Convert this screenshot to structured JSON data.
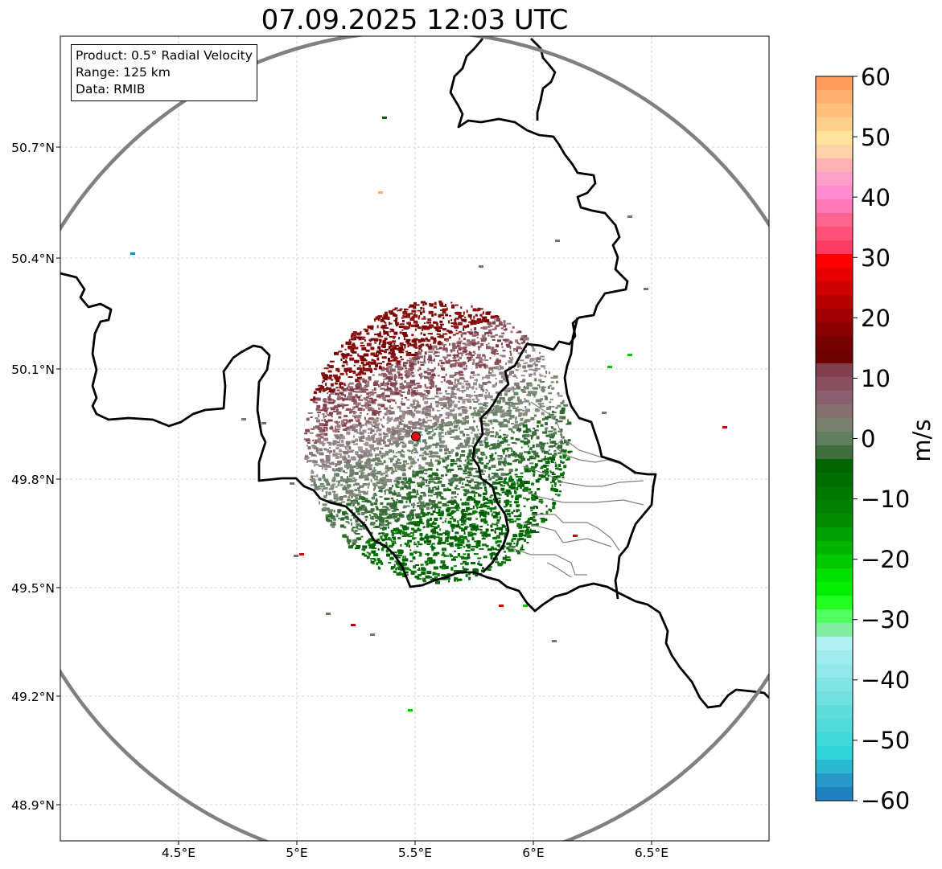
{
  "title": "07.09.2025 12:03 UTC",
  "info_box": {
    "product": "Product: 0.5° Radial Velocity",
    "range": "Range: 125 km",
    "data": "Data: RMIB"
  },
  "map": {
    "radar_site": {
      "lon": 5.505,
      "lat": 49.914
    },
    "lon_range": [
      4.0,
      7.0
    ],
    "lat_range": [
      48.8,
      50.99
    ],
    "lat_ticks": [
      "50.7°N",
      "50.4°N",
      "50.1°N",
      "49.8°N",
      "49.5°N",
      "49.2°N",
      "48.9°N"
    ],
    "lon_ticks": [
      "4.5°E",
      "5°E",
      "5.5°E",
      "6°E",
      "6.5°E"
    ],
    "grid": true,
    "range_ring_color": "#808080",
    "border_color": "#000000"
  },
  "colorbar": {
    "unit": "m/s",
    "ticks": [
      "60",
      "50",
      "40",
      "30",
      "20",
      "10",
      "0",
      "−10",
      "−20",
      "−30",
      "−40",
      "−50",
      "−60"
    ],
    "range": [
      -60,
      60
    ],
    "colors_top_to_bottom": [
      "#ff9a5a",
      "#ffb070",
      "#ffc07c",
      "#ffcf8a",
      "#ffe39c",
      "#ffd2a8",
      "#ffb2b4",
      "#ff9ec8",
      "#ff8cd0",
      "#ff78b8",
      "#ff6490",
      "#ff5078",
      "#ff3c64",
      "#ff0000",
      "#e80000",
      "#d00000",
      "#b80000",
      "#a00000",
      "#8c0000",
      "#780000",
      "#6e0000",
      "#804050",
      "#8a5060",
      "#8a6070",
      "#887070",
      "#7a8070",
      "#5f7f5f",
      "#3f6f3f",
      "#006400",
      "#006e00",
      "#007800",
      "#008200",
      "#008c00",
      "#00a000",
      "#00b400",
      "#00c800",
      "#00e000",
      "#00f000",
      "#20ff20",
      "#50ff60",
      "#80f0a0",
      "#b0f0f0",
      "#a0ecec",
      "#90e8e8",
      "#80e4e4",
      "#70e0e0",
      "#60dcdc",
      "#50dada",
      "#40d8d8",
      "#30d4d8",
      "#28b8d0",
      "#2898c8",
      "#2080c0"
    ]
  }
}
